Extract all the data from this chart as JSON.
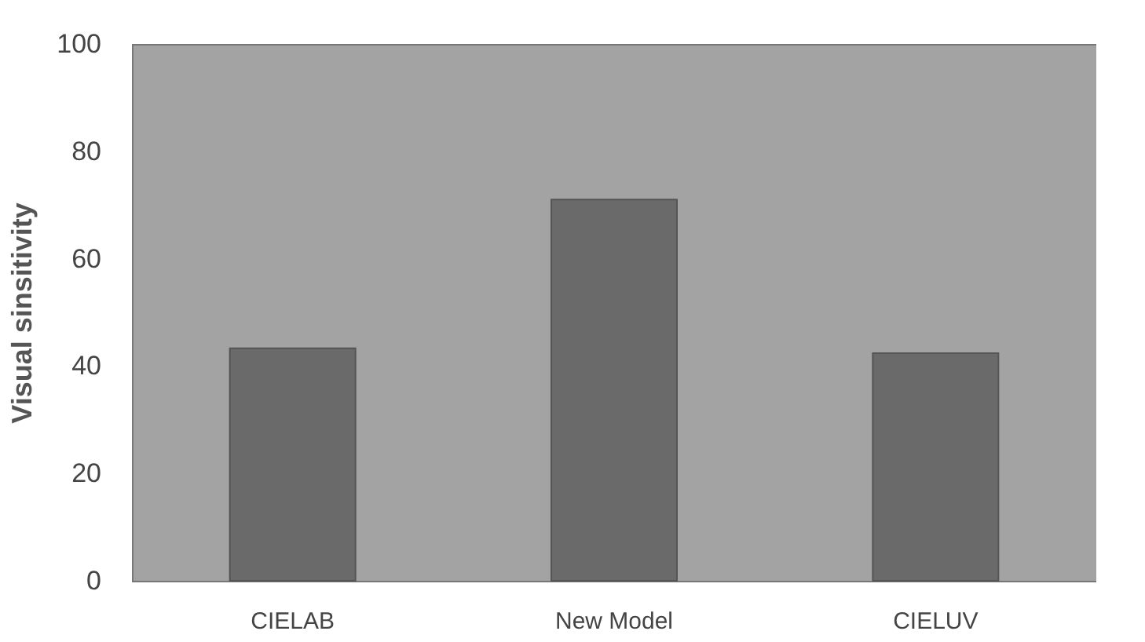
{
  "chart_data": {
    "type": "bar",
    "ylabel": "Visual    sinsitivity",
    "categories": [
      "CIELAB",
      "New Model",
      "CIELUV"
    ],
    "values": [
      43.3,
      71.0,
      42.4
    ],
    "color": "#6a6a6a",
    "ylim": [
      0,
      100
    ],
    "yticks": [
      0,
      20,
      40,
      60,
      80,
      100
    ],
    "grid": false
  }
}
